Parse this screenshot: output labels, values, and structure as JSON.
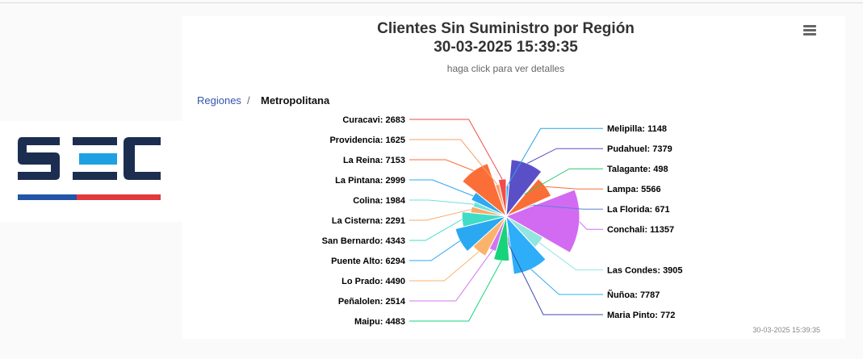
{
  "header": {
    "title_line1": "Clientes Sin Suministro por Región",
    "title_line2": "30-03-2025 15:39:35",
    "subtitle": "haga click para ver detalles"
  },
  "breadcrumb": {
    "parent": "Regiones",
    "separator": "/",
    "current": "Metropolitana"
  },
  "footer": {
    "timestamp": "30-03-2025 15:39:35"
  },
  "logo": {
    "text": "SEC",
    "colors": {
      "dark": "#1c2e50",
      "light": "#1da1e2",
      "blue": "#2255a8",
      "red": "#e03a3e"
    }
  },
  "icons": {
    "menu": "hamburger-menu-icon"
  },
  "chart_data": {
    "type": "pie",
    "variant": "variable-radius",
    "title": "Clientes Sin Suministro por Región",
    "subtitle": "haga click para ver detalles",
    "slices": [
      {
        "name": "Melipilla",
        "value": 1148,
        "color": "#2ba3e0"
      },
      {
        "name": "Pudahuel",
        "value": 7379,
        "color": "#5b4fc8"
      },
      {
        "name": "Talagante",
        "value": 498,
        "color": "#27c96b"
      },
      {
        "name": "Lampa",
        "value": 5566,
        "color": "#fb6d37"
      },
      {
        "name": "La Florida",
        "value": 671,
        "color": "#5b7fd6"
      },
      {
        "name": "Conchali",
        "value": 11357,
        "color": "#d26bf2"
      },
      {
        "name": "Las Condes",
        "value": 3905,
        "color": "#92e6df"
      },
      {
        "name": "Ñuñoa",
        "value": 7787,
        "color": "#2eaef8"
      },
      {
        "name": "Maria Pinto",
        "value": 772,
        "color": "#3c4aa8"
      },
      {
        "name": "Maipu",
        "value": 4483,
        "color": "#17d47a"
      },
      {
        "name": "Peñalolen",
        "value": 2514,
        "color": "#cf77f0"
      },
      {
        "name": "Lo Prado",
        "value": 4490,
        "color": "#fbb36c"
      },
      {
        "name": "Puente Alto",
        "value": 6294,
        "color": "#2ba8f2"
      },
      {
        "name": "San Bernardo",
        "value": 4343,
        "color": "#40dcc6"
      },
      {
        "name": "La Cisterna",
        "value": 2291,
        "color": "#f9aa6a"
      },
      {
        "name": "Colina",
        "value": 1984,
        "color": "#6ee1dd"
      },
      {
        "name": "La Pintana",
        "value": 2999,
        "color": "#2ea8f2"
      },
      {
        "name": "La Reina",
        "value": 7153,
        "color": "#fb6e37"
      },
      {
        "name": "Providencia",
        "value": 1625,
        "color": "#f7a06a"
      },
      {
        "name": "Curacavi",
        "value": 2683,
        "color": "#f24b4b"
      }
    ]
  }
}
